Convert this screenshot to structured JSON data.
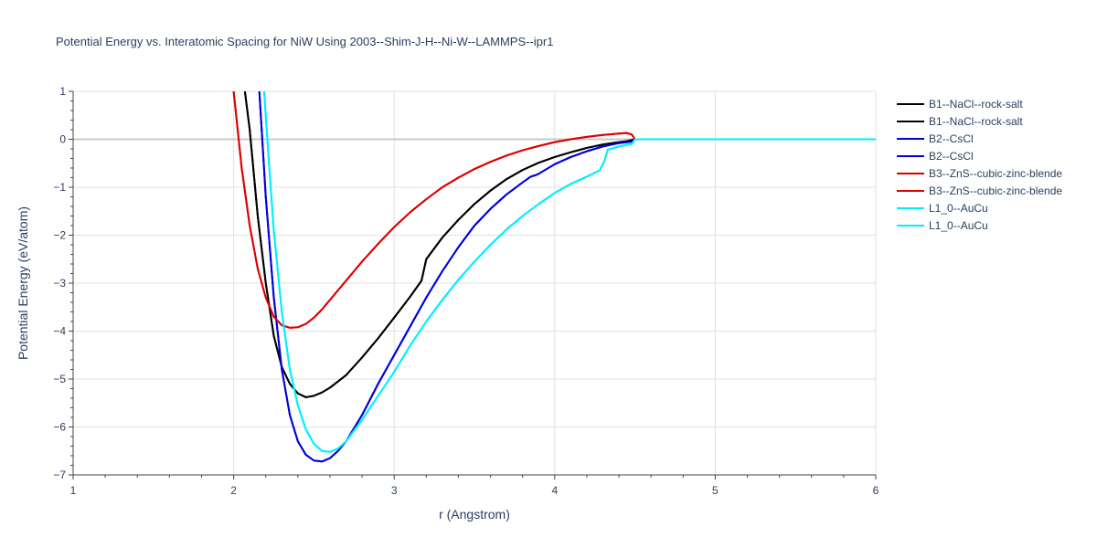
{
  "chart_data": {
    "type": "line",
    "title": "Potential Energy vs. Interatomic Spacing for NiW Using 2003--Shim-J-H--Ni-W--LAMMPS--ipr1",
    "xlabel": "r (Angstrom)",
    "ylabel": "Potential Energy (eV/atom)",
    "xlim": [
      1,
      6
    ],
    "ylim": [
      -7,
      1
    ],
    "xticks": [
      1,
      2,
      3,
      4,
      5,
      6
    ],
    "yticks": [
      1,
      0,
      -1,
      -2,
      -3,
      -4,
      -5,
      -6,
      -7
    ],
    "ytick_labels": [
      "1",
      "0",
      "−1",
      "−2",
      "−3",
      "−4",
      "−5",
      "−6",
      "−7"
    ],
    "grid": true,
    "legend_position": "top-right",
    "series": [
      {
        "name": "B1--NaCl--rock-salt",
        "color": "#000000",
        "x": [
          2.07,
          2.1,
          2.15,
          2.2,
          2.25,
          2.3,
          2.35,
          2.4,
          2.45,
          2.5,
          2.55,
          2.6,
          2.7,
          2.8,
          2.9,
          3.0,
          3.1,
          3.17,
          3.2,
          3.3,
          3.4,
          3.5,
          3.6,
          3.7,
          3.8,
          3.9,
          4.0,
          4.1,
          4.2,
          4.3,
          4.4,
          4.45,
          4.5,
          4.6,
          5.0,
          5.5,
          6.0
        ],
        "y": [
          1.0,
          0.2,
          -1.6,
          -3.0,
          -4.1,
          -4.75,
          -5.1,
          -5.3,
          -5.38,
          -5.35,
          -5.28,
          -5.18,
          -4.92,
          -4.55,
          -4.15,
          -3.72,
          -3.28,
          -2.95,
          -2.5,
          -2.05,
          -1.68,
          -1.35,
          -1.07,
          -0.83,
          -0.64,
          -0.49,
          -0.37,
          -0.27,
          -0.18,
          -0.11,
          -0.06,
          -0.04,
          0.0,
          0.0,
          0.0,
          0.0,
          0.0
        ]
      },
      {
        "name": "B1--NaCl--rock-salt",
        "color": "#000000",
        "x": [
          2.07,
          2.1,
          2.15,
          2.2,
          2.25,
          2.3,
          2.35,
          2.4,
          2.45,
          2.5,
          2.55,
          2.6,
          2.7,
          2.8,
          2.9,
          3.0,
          3.1,
          3.17,
          3.2,
          3.3,
          3.4,
          3.5,
          3.6,
          3.7,
          3.8,
          3.9,
          4.0,
          4.1,
          4.2,
          4.3,
          4.4,
          4.45,
          4.5,
          4.6,
          5.0,
          5.5,
          6.0
        ],
        "y": [
          1.0,
          0.2,
          -1.6,
          -3.0,
          -4.1,
          -4.75,
          -5.1,
          -5.3,
          -5.38,
          -5.35,
          -5.28,
          -5.18,
          -4.92,
          -4.55,
          -4.15,
          -3.72,
          -3.28,
          -2.95,
          -2.5,
          -2.05,
          -1.68,
          -1.35,
          -1.07,
          -0.83,
          -0.64,
          -0.49,
          -0.37,
          -0.27,
          -0.18,
          -0.11,
          -0.06,
          -0.04,
          0.0,
          0.0,
          0.0,
          0.0,
          0.0
        ]
      },
      {
        "name": "B2--CsCl",
        "color": "#0000dd",
        "x": [
          2.16,
          2.2,
          2.25,
          2.3,
          2.35,
          2.4,
          2.45,
          2.5,
          2.55,
          2.6,
          2.65,
          2.7,
          2.8,
          2.9,
          3.0,
          3.1,
          3.2,
          3.3,
          3.4,
          3.5,
          3.6,
          3.7,
          3.8,
          3.85,
          3.88,
          3.9,
          4.0,
          4.1,
          4.2,
          4.3,
          4.4,
          4.48,
          4.5,
          4.6,
          5.0,
          5.5,
          6.0
        ],
        "y": [
          1.0,
          -1.2,
          -3.3,
          -4.8,
          -5.75,
          -6.3,
          -6.58,
          -6.7,
          -6.72,
          -6.65,
          -6.5,
          -6.3,
          -5.75,
          -5.1,
          -4.5,
          -3.9,
          -3.3,
          -2.75,
          -2.25,
          -1.8,
          -1.45,
          -1.15,
          -0.9,
          -0.78,
          -0.75,
          -0.72,
          -0.52,
          -0.37,
          -0.25,
          -0.15,
          -0.08,
          -0.05,
          0.0,
          0.0,
          0.0,
          0.0,
          0.0
        ]
      },
      {
        "name": "B2--CsCl",
        "color": "#0000dd",
        "x": [
          2.16,
          2.2,
          2.25,
          2.3,
          2.35,
          2.4,
          2.45,
          2.5,
          2.55,
          2.6,
          2.65,
          2.7,
          2.8,
          2.9,
          3.0,
          3.1,
          3.2,
          3.3,
          3.4,
          3.5,
          3.6,
          3.7,
          3.8,
          3.85,
          3.88,
          3.9,
          4.0,
          4.1,
          4.2,
          4.3,
          4.4,
          4.48,
          4.5,
          4.6,
          5.0,
          5.5,
          6.0
        ],
        "y": [
          1.0,
          -1.2,
          -3.3,
          -4.8,
          -5.75,
          -6.3,
          -6.58,
          -6.7,
          -6.72,
          -6.65,
          -6.5,
          -6.3,
          -5.75,
          -5.1,
          -4.5,
          -3.9,
          -3.3,
          -2.75,
          -2.25,
          -1.8,
          -1.45,
          -1.15,
          -0.9,
          -0.78,
          -0.75,
          -0.72,
          -0.52,
          -0.37,
          -0.25,
          -0.15,
          -0.08,
          -0.05,
          0.0,
          0.0,
          0.0,
          0.0,
          0.0
        ]
      },
      {
        "name": "B3--ZnS--cubic-zinc-blende",
        "color": "#dd0000",
        "x": [
          2.0,
          2.05,
          2.1,
          2.15,
          2.2,
          2.25,
          2.3,
          2.35,
          2.4,
          2.45,
          2.5,
          2.55,
          2.6,
          2.7,
          2.8,
          2.9,
          3.0,
          3.1,
          3.2,
          3.3,
          3.4,
          3.5,
          3.6,
          3.7,
          3.8,
          3.9,
          4.0,
          4.1,
          4.2,
          4.3,
          4.4,
          4.45,
          4.48,
          4.5,
          4.6,
          5.0,
          5.5,
          6.0
        ],
        "y": [
          1.0,
          -0.6,
          -1.8,
          -2.7,
          -3.3,
          -3.7,
          -3.88,
          -3.93,
          -3.92,
          -3.85,
          -3.72,
          -3.55,
          -3.35,
          -2.95,
          -2.55,
          -2.18,
          -1.83,
          -1.52,
          -1.25,
          -1.0,
          -0.8,
          -0.62,
          -0.47,
          -0.34,
          -0.23,
          -0.14,
          -0.06,
          0.0,
          0.05,
          0.09,
          0.12,
          0.13,
          0.1,
          0.0,
          0.0,
          0.0,
          0.0,
          0.0
        ]
      },
      {
        "name": "B3--ZnS--cubic-zinc-blende",
        "color": "#dd0000",
        "x": [
          2.0,
          2.05,
          2.1,
          2.15,
          2.2,
          2.25,
          2.3,
          2.35,
          2.4,
          2.45,
          2.5,
          2.55,
          2.6,
          2.7,
          2.8,
          2.9,
          3.0,
          3.1,
          3.2,
          3.3,
          3.4,
          3.5,
          3.6,
          3.7,
          3.8,
          3.9,
          4.0,
          4.1,
          4.2,
          4.3,
          4.4,
          4.45,
          4.48,
          4.5,
          4.6,
          5.0,
          5.5,
          6.0
        ],
        "y": [
          1.0,
          -0.6,
          -1.8,
          -2.7,
          -3.3,
          -3.7,
          -3.88,
          -3.93,
          -3.92,
          -3.85,
          -3.72,
          -3.55,
          -3.35,
          -2.95,
          -2.55,
          -2.18,
          -1.83,
          -1.52,
          -1.25,
          -1.0,
          -0.8,
          -0.62,
          -0.47,
          -0.34,
          -0.23,
          -0.14,
          -0.06,
          0.0,
          0.05,
          0.09,
          0.12,
          0.13,
          0.1,
          0.0,
          0.0,
          0.0,
          0.0,
          0.0
        ]
      },
      {
        "name": "L1_0--AuCu",
        "color": "#00eeff",
        "x": [
          2.19,
          2.22,
          2.25,
          2.3,
          2.35,
          2.4,
          2.45,
          2.5,
          2.55,
          2.6,
          2.65,
          2.7,
          2.8,
          2.9,
          3.0,
          3.1,
          3.2,
          3.3,
          3.4,
          3.5,
          3.6,
          3.7,
          3.8,
          3.9,
          4.0,
          4.1,
          4.2,
          4.28,
          4.31,
          4.33,
          4.4,
          4.48,
          4.5,
          4.6,
          5.0,
          5.5,
          6.0
        ],
        "y": [
          1.0,
          -0.5,
          -1.9,
          -3.6,
          -4.8,
          -5.55,
          -6.05,
          -6.35,
          -6.5,
          -6.52,
          -6.45,
          -6.3,
          -5.85,
          -5.35,
          -4.85,
          -4.3,
          -3.8,
          -3.35,
          -2.93,
          -2.55,
          -2.2,
          -1.88,
          -1.6,
          -1.35,
          -1.12,
          -0.93,
          -0.78,
          -0.65,
          -0.45,
          -0.22,
          -0.15,
          -0.1,
          0.0,
          0.0,
          0.0,
          0.0,
          0.0
        ]
      },
      {
        "name": "L1_0--AuCu",
        "color": "#00eeff",
        "x": [
          2.19,
          2.22,
          2.25,
          2.3,
          2.35,
          2.4,
          2.45,
          2.5,
          2.55,
          2.6,
          2.65,
          2.7,
          2.8,
          2.9,
          3.0,
          3.1,
          3.2,
          3.3,
          3.4,
          3.5,
          3.6,
          3.7,
          3.8,
          3.9,
          4.0,
          4.1,
          4.2,
          4.28,
          4.31,
          4.33,
          4.4,
          4.48,
          4.5,
          4.6,
          5.0,
          5.5,
          6.0
        ],
        "y": [
          1.0,
          -0.5,
          -1.9,
          -3.6,
          -4.8,
          -5.55,
          -6.05,
          -6.35,
          -6.5,
          -6.52,
          -6.45,
          -6.3,
          -5.85,
          -5.35,
          -4.85,
          -4.3,
          -3.8,
          -3.35,
          -2.93,
          -2.55,
          -2.2,
          -1.88,
          -1.6,
          -1.35,
          -1.12,
          -0.93,
          -0.78,
          -0.65,
          -0.45,
          -0.22,
          -0.15,
          -0.1,
          0.0,
          0.0,
          0.0,
          0.0,
          0.0
        ]
      }
    ]
  }
}
